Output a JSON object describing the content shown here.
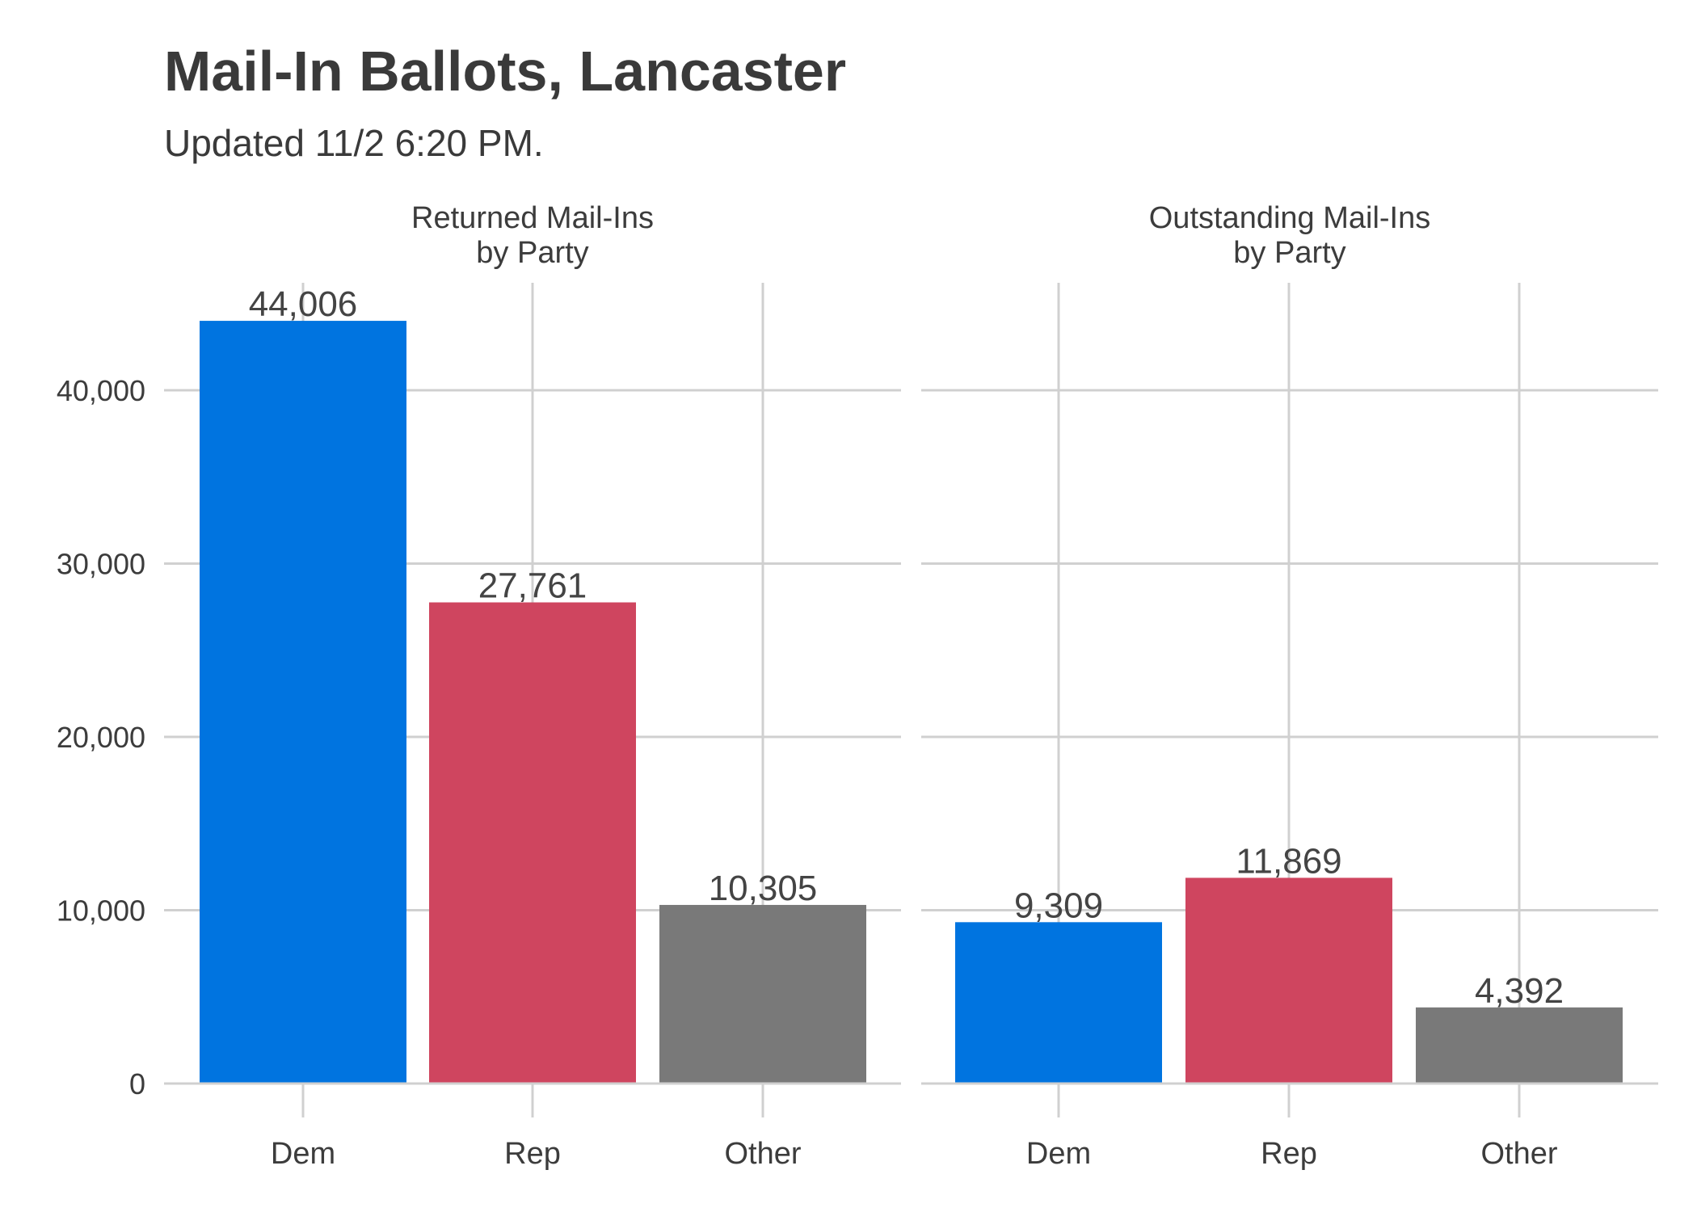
{
  "title": "Mail-In Ballots, Lancaster",
  "subtitle": "Updated 11/2 6:20 PM.",
  "chart_data": {
    "type": "bar",
    "title": "Mail-In Ballots, Lancaster",
    "subtitle": "Updated 11/2 6:20 PM.",
    "ylim": [
      0,
      47000
    ],
    "y_ticks": [
      0,
      10000,
      20000,
      30000,
      40000
    ],
    "y_tick_labels": [
      "0",
      "10,000",
      "20,000",
      "30,000",
      "40,000"
    ],
    "grid": true,
    "legend": "none",
    "categories": [
      "Dem",
      "Rep",
      "Other"
    ],
    "colors": {
      "Dem": "#0074e0",
      "Rep": "#cf455f",
      "Other": "#797979"
    },
    "panels": [
      {
        "title_lines": [
          "Returned Mail-Ins",
          "by Party"
        ],
        "values": [
          44006,
          27761,
          10305
        ],
        "labels": [
          "44,006",
          "27,761",
          "10,305"
        ]
      },
      {
        "title_lines": [
          "Outstanding Mail-Ins",
          "by Party"
        ],
        "values": [
          9309,
          11869,
          4392
        ],
        "labels": [
          "9,309",
          "11,869",
          "4,392"
        ]
      }
    ]
  }
}
